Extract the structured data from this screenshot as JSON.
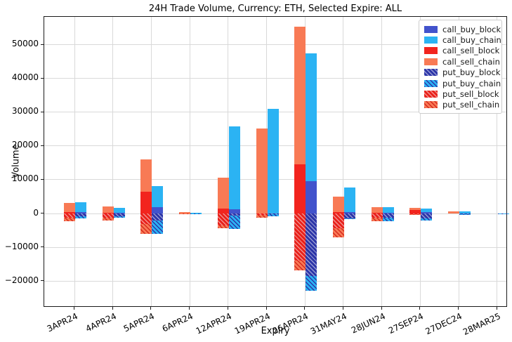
{
  "chart_data": {
    "type": "bar",
    "stacked": true,
    "title": "24H Trade Volume, Currency: ETH, Selected Expire: ALL",
    "xlabel": "Expiry",
    "ylabel": "Volume",
    "grid": true,
    "legend_position": "upper right",
    "ylim": [
      -27900,
      58300
    ],
    "yticks": [
      -20000,
      -10000,
      0,
      10000,
      20000,
      30000,
      40000,
      50000
    ],
    "categories": [
      "3APR24",
      "4APR24",
      "5APR24",
      "6APR24",
      "12APR24",
      "19APR24",
      "26APR24",
      "31MAY24",
      "28JUN24",
      "27SEP24",
      "27DEC24",
      "28MAR25"
    ],
    "series": [
      {
        "name": "call_buy_block",
        "bar": "buy",
        "color": "#4253cc",
        "hatch": false,
        "hatch_color": null,
        "values": [
          400,
          200,
          1800,
          0,
          1300,
          0,
          9500,
          500,
          200,
          400,
          0,
          0
        ]
      },
      {
        "name": "call_buy_chain",
        "bar": "buy",
        "color": "#2bb3f3",
        "hatch": false,
        "hatch_color": null,
        "values": [
          2900,
          1500,
          6300,
          300,
          24600,
          31100,
          38000,
          7300,
          1700,
          1100,
          600,
          100
        ]
      },
      {
        "name": "call_sell_block",
        "bar": "sell",
        "color": "#f2241e",
        "hatch": false,
        "hatch_color": null,
        "values": [
          400,
          300,
          6500,
          0,
          1500,
          0,
          14600,
          400,
          300,
          1100,
          0,
          0
        ]
      },
      {
        "name": "call_sell_chain",
        "bar": "sell",
        "color": "#f87a55",
        "hatch": false,
        "hatch_color": null,
        "values": [
          2800,
          1800,
          9600,
          400,
          9100,
          25100,
          40700,
          4600,
          1600,
          600,
          700,
          0
        ]
      },
      {
        "name": "put_buy_block",
        "bar": "buy",
        "color": "#2c35a8",
        "hatch": true,
        "hatch_color": "rgba(255,255,255,0.5)",
        "values": [
          -900,
          -800,
          -2000,
          0,
          -600,
          -300,
          -18500,
          -1400,
          -1300,
          -1500,
          -200,
          0
        ]
      },
      {
        "name": "put_buy_chain",
        "bar": "buy",
        "color": "#2bb3f3",
        "hatch": true,
        "hatch_color": "#2c35a8",
        "values": [
          -600,
          -400,
          -4100,
          -100,
          -3900,
          -500,
          -4500,
          -200,
          -900,
          -600,
          -200,
          -100
        ]
      },
      {
        "name": "put_sell_block",
        "bar": "sell",
        "color": "#e8211b",
        "hatch": true,
        "hatch_color": "rgba(255,255,255,0.5)",
        "values": [
          -1200,
          -1300,
          -3200,
          0,
          -3600,
          -500,
          -14000,
          -4300,
          -1200,
          -300,
          0,
          0
        ]
      },
      {
        "name": "put_sell_chain",
        "bar": "sell",
        "color": "#f87a55",
        "hatch": true,
        "hatch_color": "#d6281e",
        "values": [
          -1100,
          -700,
          -2900,
          -100,
          -800,
          -800,
          -2900,
          -2800,
          -1000,
          -100,
          0,
          0
        ]
      }
    ]
  }
}
